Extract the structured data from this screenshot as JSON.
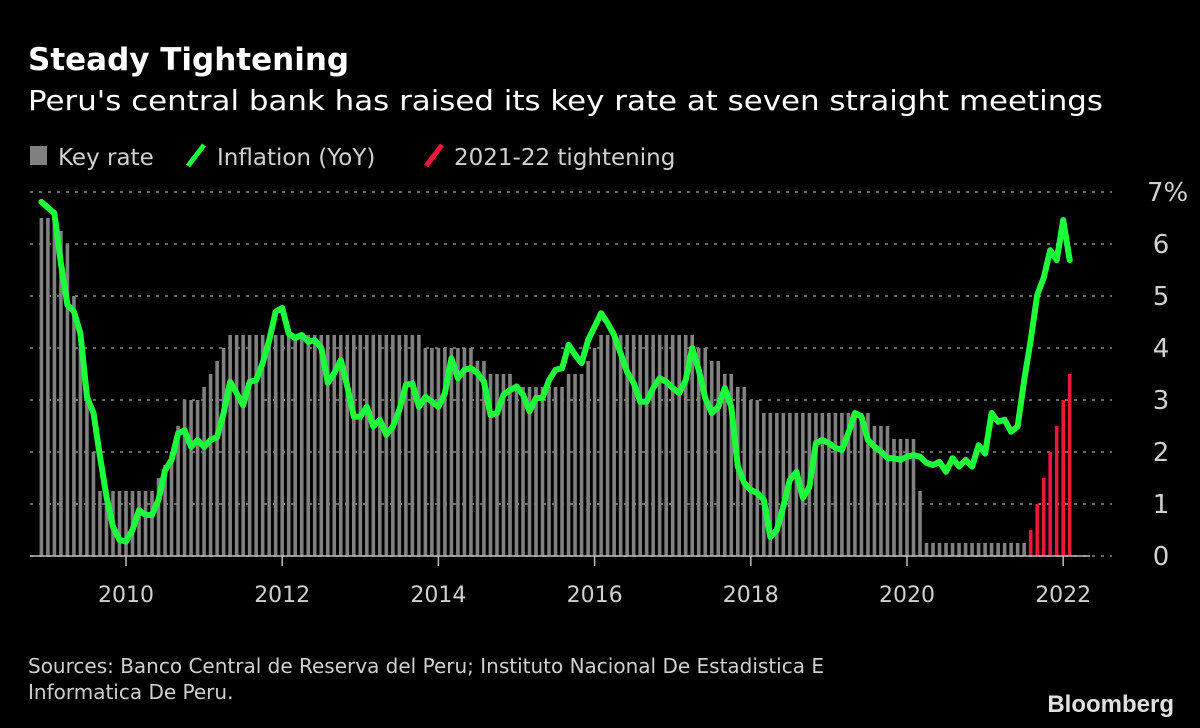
{
  "header": {
    "title": "Steady Tightening",
    "subtitle": "Peru's central bank has raised its key rate at seven straight meetings"
  },
  "footer": {
    "source_line1": "Sources: Banco Central de Reserva del Peru; Instituto Nacional De Estadistica E",
    "source_line2": "Informatica De Peru.",
    "logo": "Bloomberg"
  },
  "chart_data": {
    "type": "bar+line",
    "title": "Steady Tightening",
    "subtitle": "Peru's central bank has raised its key rate at seven straight meetings",
    "legend": [
      {
        "label": "Key rate",
        "color": "#808080",
        "marker": "square"
      },
      {
        "label": "Inflation (YoY)",
        "color": "#1eff3c",
        "marker": "line"
      },
      {
        "label": "2021-22 tightening",
        "color": "#ee1639",
        "marker": "line"
      }
    ],
    "legend_placement": "top-left",
    "grid": true,
    "y_axis": {
      "position": "right",
      "ylim": [
        0,
        7
      ],
      "ticks": [
        "0",
        "1",
        "2",
        "3",
        "4",
        "5",
        "6",
        "7%"
      ],
      "unit": "%"
    },
    "x_axis": {
      "xlim": [
        "2008-11",
        "2022-03"
      ],
      "ticks": [
        "2010",
        "2012",
        "2014",
        "2016",
        "2018",
        "2020",
        "2022"
      ]
    },
    "months": [
      "2008-11",
      "2008-12",
      "2009-01",
      "2009-02",
      "2009-03",
      "2009-04",
      "2009-05",
      "2009-06",
      "2009-07",
      "2009-08",
      "2009-09",
      "2009-10",
      "2009-11",
      "2009-12",
      "2010-01",
      "2010-02",
      "2010-03",
      "2010-04",
      "2010-05",
      "2010-06",
      "2010-07",
      "2010-08",
      "2010-09",
      "2010-10",
      "2010-11",
      "2010-12",
      "2011-01",
      "2011-02",
      "2011-03",
      "2011-04",
      "2011-05",
      "2011-06",
      "2011-07",
      "2011-08",
      "2011-09",
      "2011-10",
      "2011-11",
      "2011-12",
      "2012-01",
      "2012-02",
      "2012-03",
      "2012-04",
      "2012-05",
      "2012-06",
      "2012-07",
      "2012-08",
      "2012-09",
      "2012-10",
      "2012-11",
      "2012-12",
      "2013-01",
      "2013-02",
      "2013-03",
      "2013-04",
      "2013-05",
      "2013-06",
      "2013-07",
      "2013-08",
      "2013-09",
      "2013-10",
      "2013-11",
      "2013-12",
      "2014-01",
      "2014-02",
      "2014-03",
      "2014-04",
      "2014-05",
      "2014-06",
      "2014-07",
      "2014-08",
      "2014-09",
      "2014-10",
      "2014-11",
      "2014-12",
      "2015-01",
      "2015-02",
      "2015-03",
      "2015-04",
      "2015-05",
      "2015-06",
      "2015-07",
      "2015-08",
      "2015-09",
      "2015-10",
      "2015-11",
      "2015-12",
      "2016-01",
      "2016-02",
      "2016-03",
      "2016-04",
      "2016-05",
      "2016-06",
      "2016-07",
      "2016-08",
      "2016-09",
      "2016-10",
      "2016-11",
      "2016-12",
      "2017-01",
      "2017-02",
      "2017-03",
      "2017-04",
      "2017-05",
      "2017-06",
      "2017-07",
      "2017-08",
      "2017-09",
      "2017-10",
      "2017-11",
      "2017-12",
      "2018-01",
      "2018-02",
      "2018-03",
      "2018-04",
      "2018-05",
      "2018-06",
      "2018-07",
      "2018-08",
      "2018-09",
      "2018-10",
      "2018-11",
      "2018-12",
      "2019-01",
      "2019-02",
      "2019-03",
      "2019-04",
      "2019-05",
      "2019-06",
      "2019-07",
      "2019-08",
      "2019-09",
      "2019-10",
      "2019-11",
      "2019-12",
      "2020-01",
      "2020-02",
      "2020-03",
      "2020-04",
      "2020-05",
      "2020-06",
      "2020-07",
      "2020-08",
      "2020-09",
      "2020-10",
      "2020-11",
      "2020-12",
      "2021-01",
      "2021-02",
      "2021-03",
      "2021-04",
      "2021-05",
      "2021-06",
      "2021-07",
      "2021-08",
      "2021-09",
      "2021-10",
      "2021-11",
      "2021-12",
      "2022-01",
      "2022-02"
    ],
    "series": [
      {
        "name": "Key rate",
        "type": "bar",
        "color": "#808080",
        "values": [
          null,
          6.5,
          6.5,
          6.5,
          6.25,
          6.0,
          5.0,
          4.0,
          3.0,
          2.0,
          1.25,
          1.25,
          1.25,
          1.25,
          1.25,
          1.25,
          1.25,
          1.25,
          1.25,
          1.5,
          1.75,
          2.0,
          2.5,
          3.0,
          3.0,
          3.0,
          3.25,
          3.5,
          3.75,
          4.0,
          4.25,
          4.25,
          4.25,
          4.25,
          4.25,
          4.25,
          4.25,
          4.25,
          4.25,
          4.25,
          4.25,
          4.25,
          4.25,
          4.25,
          4.25,
          4.25,
          4.25,
          4.25,
          4.25,
          4.25,
          4.25,
          4.25,
          4.25,
          4.25,
          4.25,
          4.25,
          4.25,
          4.25,
          4.25,
          4.25,
          4.0,
          4.0,
          4.0,
          4.0,
          4.0,
          4.0,
          4.0,
          4.0,
          3.75,
          3.75,
          3.5,
          3.5,
          3.5,
          3.5,
          3.25,
          3.25,
          3.25,
          3.25,
          3.25,
          3.25,
          3.25,
          3.25,
          3.5,
          3.5,
          3.5,
          3.75,
          4.0,
          4.25,
          4.25,
          4.25,
          4.25,
          4.25,
          4.25,
          4.25,
          4.25,
          4.25,
          4.25,
          4.25,
          4.25,
          4.25,
          4.25,
          4.25,
          4.0,
          4.0,
          3.75,
          3.75,
          3.5,
          3.5,
          3.25,
          3.25,
          3.0,
          3.0,
          2.75,
          2.75,
          2.75,
          2.75,
          2.75,
          2.75,
          2.75,
          2.75,
          2.75,
          2.75,
          2.75,
          2.75,
          2.75,
          2.75,
          2.75,
          2.75,
          2.75,
          2.5,
          2.5,
          2.5,
          2.25,
          2.25,
          2.25,
          2.25,
          1.25,
          0.25,
          0.25,
          0.25,
          0.25,
          0.25,
          0.25,
          0.25,
          0.25,
          0.25,
          0.25,
          0.25,
          0.25,
          0.25,
          0.25,
          0.25,
          0.25,
          null,
          null,
          null,
          null,
          null,
          null,
          null
        ]
      },
      {
        "name": "2021-22 tightening",
        "type": "bar",
        "color": "#ee1639",
        "x": [
          "2021-08",
          "2021-09",
          "2021-10",
          "2021-11",
          "2021-12",
          "2022-01",
          "2022-02"
        ],
        "values": [
          0.5,
          1.0,
          1.5,
          2.0,
          2.5,
          3.0,
          3.5
        ]
      },
      {
        "name": "Inflation (YoY)",
        "type": "line",
        "color": "#1eff3c",
        "values": [
          6.81,
          6.7,
          6.59,
          5.63,
          4.83,
          4.7,
          4.28,
          3.06,
          2.75,
          1.91,
          1.14,
          0.56,
          0.31,
          0.28,
          0.5,
          0.88,
          0.79,
          0.79,
          1.08,
          1.65,
          1.85,
          2.36,
          2.42,
          2.1,
          2.23,
          2.1,
          2.23,
          2.29,
          2.75,
          3.35,
          3.13,
          2.9,
          3.35,
          3.38,
          3.71,
          4.15,
          4.7,
          4.77,
          4.28,
          4.19,
          4.25,
          4.12,
          4.15,
          4.0,
          3.33,
          3.52,
          3.77,
          3.26,
          2.68,
          2.68,
          2.87,
          2.49,
          2.62,
          2.33,
          2.49,
          2.81,
          3.29,
          3.32,
          2.87,
          3.06,
          2.97,
          2.87,
          3.13,
          3.8,
          3.42,
          3.58,
          3.61,
          3.52,
          3.35,
          2.71,
          2.75,
          3.1,
          3.19,
          3.26,
          3.1,
          2.78,
          3.04,
          3.04,
          3.38,
          3.58,
          3.61,
          4.06,
          3.87,
          3.71,
          4.15,
          4.41,
          4.67,
          4.48,
          4.25,
          3.9,
          3.54,
          3.33,
          2.97,
          2.97,
          3.23,
          3.42,
          3.35,
          3.23,
          3.13,
          3.38,
          4.0,
          3.58,
          3.04,
          2.75,
          2.87,
          3.23,
          2.87,
          1.72,
          1.4,
          1.27,
          1.21,
          1.08,
          0.37,
          0.5,
          0.95,
          1.46,
          1.62,
          1.12,
          1.33,
          2.17,
          2.23,
          2.17,
          2.08,
          2.04,
          2.37,
          2.75,
          2.68,
          2.23,
          2.1,
          2.01,
          1.88,
          1.88,
          1.85,
          1.91,
          1.94,
          1.91,
          1.79,
          1.75,
          1.81,
          1.62,
          1.88,
          1.72,
          1.85,
          1.72,
          2.13,
          1.97,
          2.75,
          2.58,
          2.62,
          2.39,
          2.49,
          3.38,
          4.15,
          5.02,
          5.35,
          5.88,
          5.69,
          6.46,
          5.69,
          null
        ]
      }
    ]
  }
}
